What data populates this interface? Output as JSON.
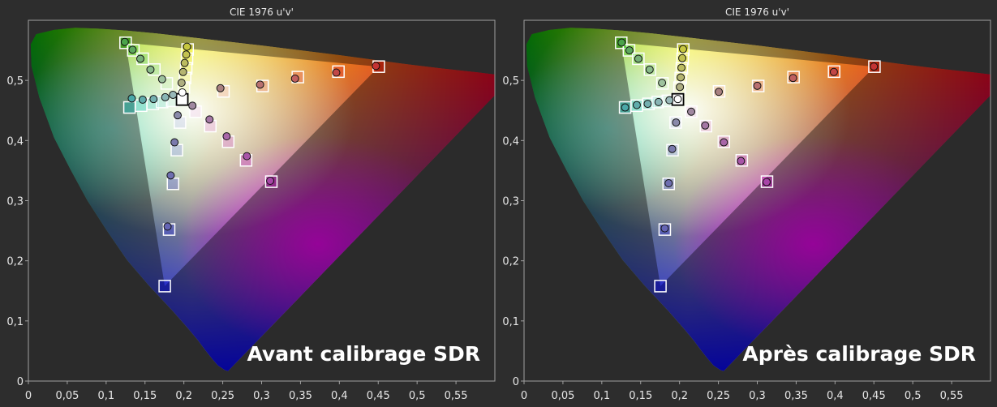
{
  "colors": {
    "background": "#2d2d2d",
    "plot_background": "#2b2b2b",
    "frame": "#a0a0a0",
    "text": "#e6e6e6",
    "label": "#ffffff"
  },
  "chart_data": [
    {
      "type": "scatter",
      "title": "CIE 1976 u'v'",
      "annotation": "Avant calibrage SDR",
      "xlim": [
        0,
        0.6
      ],
      "ylim": [
        0,
        0.6
      ],
      "x_ticks": [
        0,
        0.05,
        0.1,
        0.15,
        0.2,
        0.25,
        0.3,
        0.35,
        0.4,
        0.45,
        0.5,
        0.55
      ],
      "x_tick_labels": [
        "0",
        "0,05",
        "0,1",
        "0,15",
        "0,2",
        "0,25",
        "0,3",
        "0,35",
        "0,4",
        "0,45",
        "0,5",
        "0,55"
      ],
      "y_ticks": [
        0,
        0.1,
        0.2,
        0.3,
        0.4,
        0.5
      ],
      "y_tick_labels": [
        "0",
        "0,1",
        "0,2",
        "0,3",
        "0,4",
        "0,5"
      ],
      "grid": false,
      "targets": [
        {
          "u": 0.4507,
          "v": 0.5229,
          "color": "#e00000"
        },
        {
          "u": 0.3988,
          "v": 0.5146,
          "color": "#e83030"
        },
        {
          "u": 0.3466,
          "v": 0.5055,
          "color": "#ee5f5f"
        },
        {
          "u": 0.3012,
          "v": 0.4907,
          "color": "#f28a8a"
        },
        {
          "u": 0.2509,
          "v": 0.4817,
          "color": "#f5b4b4"
        },
        {
          "u": 0.1978,
          "v": 0.4683,
          "color": "#ffffff"
        },
        {
          "u": 0.125,
          "v": 0.5625,
          "color": "#00c000"
        },
        {
          "u": 0.135,
          "v": 0.55,
          "color": "#33cc33"
        },
        {
          "u": 0.147,
          "v": 0.536,
          "color": "#66d866"
        },
        {
          "u": 0.162,
          "v": 0.518,
          "color": "#99e499"
        },
        {
          "u": 0.178,
          "v": 0.495,
          "color": "#c8f0c8"
        },
        {
          "u": 0.2048,
          "v": 0.5514,
          "color": "#f0f000"
        },
        {
          "u": 0.204,
          "v": 0.536,
          "color": "#f2f233"
        },
        {
          "u": 0.203,
          "v": 0.52,
          "color": "#f5f566"
        },
        {
          "u": 0.2015,
          "v": 0.504,
          "color": "#f8f899"
        },
        {
          "u": 0.2,
          "v": 0.488,
          "color": "#fbfbcc"
        },
        {
          "u": 0.1754,
          "v": 0.1579,
          "color": "#0000e0"
        },
        {
          "u": 0.181,
          "v": 0.252,
          "color": "#3939e6"
        },
        {
          "u": 0.186,
          "v": 0.328,
          "color": "#6b6bec"
        },
        {
          "u": 0.191,
          "v": 0.384,
          "color": "#9a9af2"
        },
        {
          "u": 0.195,
          "v": 0.43,
          "color": "#c8c8f8"
        },
        {
          "u": 0.3125,
          "v": 0.3316,
          "color": "#c000c0"
        },
        {
          "u": 0.28,
          "v": 0.367,
          "color": "#cc33cc"
        },
        {
          "u": 0.257,
          "v": 0.398,
          "color": "#d866d8"
        },
        {
          "u": 0.234,
          "v": 0.424,
          "color": "#e499e4"
        },
        {
          "u": 0.215,
          "v": 0.448,
          "color": "#f0ccf0"
        },
        {
          "u": 0.13,
          "v": 0.455,
          "color": "#00c0c0"
        },
        {
          "u": 0.145,
          "v": 0.458,
          "color": "#33cccc"
        },
        {
          "u": 0.16,
          "v": 0.461,
          "color": "#66d8d8"
        },
        {
          "u": 0.172,
          "v": 0.464,
          "color": "#99e4e4"
        },
        {
          "u": 0.185,
          "v": 0.466,
          "color": "#ccf0f0"
        }
      ],
      "measured": [
        {
          "u": 0.447,
          "v": 0.524,
          "color": "#c43333"
        },
        {
          "u": 0.396,
          "v": 0.513,
          "color": "#c24747"
        },
        {
          "u": 0.343,
          "v": 0.503,
          "color": "#c06060"
        },
        {
          "u": 0.298,
          "v": 0.493,
          "color": "#b97070"
        },
        {
          "u": 0.247,
          "v": 0.487,
          "color": "#a88080"
        },
        {
          "u": 0.198,
          "v": 0.48,
          "color": "#ffffff"
        },
        {
          "u": 0.124,
          "v": 0.564,
          "color": "#4aa34a"
        },
        {
          "u": 0.134,
          "v": 0.551,
          "color": "#5ea85e"
        },
        {
          "u": 0.144,
          "v": 0.536,
          "color": "#78b078"
        },
        {
          "u": 0.157,
          "v": 0.518,
          "color": "#8aba8a"
        },
        {
          "u": 0.172,
          "v": 0.502,
          "color": "#9ec29e"
        },
        {
          "u": 0.204,
          "v": 0.556,
          "color": "#c7c740"
        },
        {
          "u": 0.203,
          "v": 0.543,
          "color": "#c2c250"
        },
        {
          "u": 0.201,
          "v": 0.529,
          "color": "#bcbc60"
        },
        {
          "u": 0.199,
          "v": 0.514,
          "color": "#b5b570"
        },
        {
          "u": 0.197,
          "v": 0.496,
          "color": "#aeae80"
        },
        {
          "u": 0.179,
          "v": 0.257,
          "color": "#6565b5"
        },
        {
          "u": 0.183,
          "v": 0.342,
          "color": "#6e6eb0"
        },
        {
          "u": 0.188,
          "v": 0.397,
          "color": "#7a7aac"
        },
        {
          "u": 0.192,
          "v": 0.442,
          "color": "#8a8aaa"
        },
        {
          "u": 0.311,
          "v": 0.333,
          "color": "#a845a8"
        },
        {
          "u": 0.281,
          "v": 0.374,
          "color": "#a855a8"
        },
        {
          "u": 0.255,
          "v": 0.407,
          "color": "#a866a8"
        },
        {
          "u": 0.233,
          "v": 0.435,
          "color": "#a577a5"
        },
        {
          "u": 0.211,
          "v": 0.458,
          "color": "#a088a0"
        },
        {
          "u": 0.133,
          "v": 0.47,
          "color": "#4aa8a8"
        },
        {
          "u": 0.147,
          "v": 0.468,
          "color": "#60acac"
        },
        {
          "u": 0.161,
          "v": 0.469,
          "color": "#74b0b0"
        },
        {
          "u": 0.176,
          "v": 0.472,
          "color": "#88b4b4"
        },
        {
          "u": 0.186,
          "v": 0.476,
          "color": "#98b8b8"
        }
      ]
    },
    {
      "type": "scatter",
      "title": "CIE 1976 u'v'",
      "annotation": "Après calibrage SDR",
      "xlim": [
        0,
        0.6
      ],
      "ylim": [
        0,
        0.6
      ],
      "x_ticks": [
        0,
        0.05,
        0.1,
        0.15,
        0.2,
        0.25,
        0.3,
        0.35,
        0.4,
        0.45,
        0.5,
        0.55
      ],
      "x_tick_labels": [
        "0",
        "0,05",
        "0,1",
        "0,15",
        "0,2",
        "0,25",
        "0,3",
        "0,35",
        "0,4",
        "0,45",
        "0,5",
        "0,55"
      ],
      "y_ticks": [
        0,
        0.1,
        0.2,
        0.3,
        0.4,
        0.5
      ],
      "y_tick_labels": [
        "0",
        "0,1",
        "0,2",
        "0,3",
        "0,4",
        "0,5"
      ],
      "grid": false,
      "targets": [
        {
          "u": 0.4507,
          "v": 0.5229,
          "color": "#e00000"
        },
        {
          "u": 0.3988,
          "v": 0.5146,
          "color": "#e83030"
        },
        {
          "u": 0.3466,
          "v": 0.5055,
          "color": "#ee5f5f"
        },
        {
          "u": 0.3012,
          "v": 0.4907,
          "color": "#f28a8a"
        },
        {
          "u": 0.2509,
          "v": 0.4817,
          "color": "#f5b4b4"
        },
        {
          "u": 0.1978,
          "v": 0.4683,
          "color": "#ffffff"
        },
        {
          "u": 0.125,
          "v": 0.5625,
          "color": "#00c000"
        },
        {
          "u": 0.135,
          "v": 0.55,
          "color": "#33cc33"
        },
        {
          "u": 0.147,
          "v": 0.536,
          "color": "#66d866"
        },
        {
          "u": 0.162,
          "v": 0.518,
          "color": "#99e499"
        },
        {
          "u": 0.178,
          "v": 0.495,
          "color": "#c8f0c8"
        },
        {
          "u": 0.2048,
          "v": 0.5514,
          "color": "#f0f000"
        },
        {
          "u": 0.204,
          "v": 0.536,
          "color": "#f2f233"
        },
        {
          "u": 0.203,
          "v": 0.52,
          "color": "#f5f566"
        },
        {
          "u": 0.2015,
          "v": 0.504,
          "color": "#f8f899"
        },
        {
          "u": 0.2,
          "v": 0.488,
          "color": "#fbfbcc"
        },
        {
          "u": 0.1754,
          "v": 0.1579,
          "color": "#0000e0"
        },
        {
          "u": 0.181,
          "v": 0.252,
          "color": "#3939e6"
        },
        {
          "u": 0.186,
          "v": 0.328,
          "color": "#6b6bec"
        },
        {
          "u": 0.191,
          "v": 0.384,
          "color": "#9a9af2"
        },
        {
          "u": 0.195,
          "v": 0.43,
          "color": "#c8c8f8"
        },
        {
          "u": 0.3125,
          "v": 0.3316,
          "color": "#c000c0"
        },
        {
          "u": 0.28,
          "v": 0.367,
          "color": "#cc33cc"
        },
        {
          "u": 0.257,
          "v": 0.398,
          "color": "#d866d8"
        },
        {
          "u": 0.234,
          "v": 0.424,
          "color": "#e499e4"
        },
        {
          "u": 0.215,
          "v": 0.448,
          "color": "#f0ccf0"
        },
        {
          "u": 0.13,
          "v": 0.455,
          "color": "#00c0c0"
        },
        {
          "u": 0.145,
          "v": 0.458,
          "color": "#33cccc"
        },
        {
          "u": 0.16,
          "v": 0.461,
          "color": "#66d8d8"
        },
        {
          "u": 0.172,
          "v": 0.464,
          "color": "#99e4e4"
        },
        {
          "u": 0.185,
          "v": 0.466,
          "color": "#ccf0f0"
        }
      ],
      "measured": [
        {
          "u": 0.45,
          "v": 0.523,
          "color": "#c43333"
        },
        {
          "u": 0.3985,
          "v": 0.514,
          "color": "#c24747"
        },
        {
          "u": 0.346,
          "v": 0.504,
          "color": "#c06060"
        },
        {
          "u": 0.3,
          "v": 0.491,
          "color": "#b97070"
        },
        {
          "u": 0.2505,
          "v": 0.481,
          "color": "#a88080"
        },
        {
          "u": 0.1978,
          "v": 0.469,
          "color": "#ffffff"
        },
        {
          "u": 0.1255,
          "v": 0.563,
          "color": "#4aa34a"
        },
        {
          "u": 0.1355,
          "v": 0.55,
          "color": "#5ea85e"
        },
        {
          "u": 0.147,
          "v": 0.536,
          "color": "#78b078"
        },
        {
          "u": 0.1615,
          "v": 0.518,
          "color": "#8aba8a"
        },
        {
          "u": 0.1775,
          "v": 0.496,
          "color": "#9ec29e"
        },
        {
          "u": 0.2045,
          "v": 0.552,
          "color": "#c7c740"
        },
        {
          "u": 0.2035,
          "v": 0.537,
          "color": "#c2c250"
        },
        {
          "u": 0.2025,
          "v": 0.521,
          "color": "#bcbc60"
        },
        {
          "u": 0.2015,
          "v": 0.505,
          "color": "#b5b570"
        },
        {
          "u": 0.2005,
          "v": 0.489,
          "color": "#aeae80"
        },
        {
          "u": 0.181,
          "v": 0.254,
          "color": "#6565b5"
        },
        {
          "u": 0.186,
          "v": 0.329,
          "color": "#6e6eb0"
        },
        {
          "u": 0.1905,
          "v": 0.386,
          "color": "#7a7aac"
        },
        {
          "u": 0.1955,
          "v": 0.43,
          "color": "#8a8aaa"
        },
        {
          "u": 0.312,
          "v": 0.331,
          "color": "#a845a8"
        },
        {
          "u": 0.279,
          "v": 0.366,
          "color": "#a855a8"
        },
        {
          "u": 0.257,
          "v": 0.397,
          "color": "#a866a8"
        },
        {
          "u": 0.233,
          "v": 0.425,
          "color": "#a577a5"
        },
        {
          "u": 0.215,
          "v": 0.448,
          "color": "#a088a0"
        },
        {
          "u": 0.13,
          "v": 0.455,
          "color": "#4aa8a8"
        },
        {
          "u": 0.145,
          "v": 0.459,
          "color": "#60acac"
        },
        {
          "u": 0.159,
          "v": 0.461,
          "color": "#74b0b0"
        },
        {
          "u": 0.173,
          "v": 0.464,
          "color": "#88b4b4"
        },
        {
          "u": 0.187,
          "v": 0.467,
          "color": "#98b8b8"
        }
      ]
    }
  ]
}
